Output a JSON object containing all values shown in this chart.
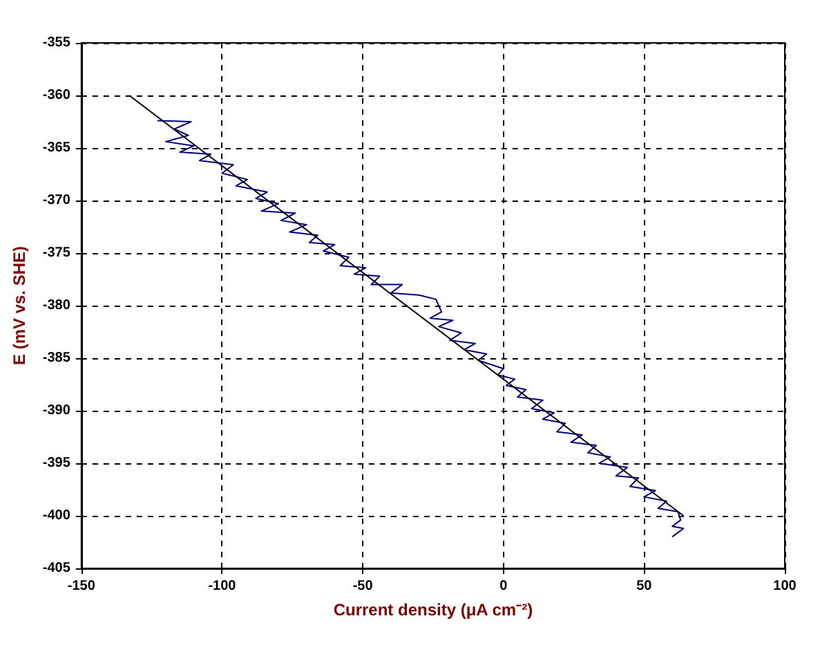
{
  "chart_data": {
    "type": "line",
    "xlabel": "Current density (μA cm⁻²)",
    "ylabel": "E (mV vs. SHE)",
    "xlim": [
      -150,
      100
    ],
    "xticks": [
      -150,
      -100,
      -50,
      0,
      50,
      100
    ],
    "ylim": [
      -405,
      -355
    ],
    "yticks": [
      -405,
      -400,
      -395,
      -390,
      -385,
      -380,
      -375,
      -370,
      -365,
      -360,
      -355
    ],
    "grid": true,
    "marker": "none",
    "line_style": "solid",
    "series": [
      {
        "color": "#000080",
        "x": [
          -123,
          -111,
          -117,
          -112,
          -120,
          -110,
          -115,
          -104,
          -108,
          -96,
          -100,
          -91,
          -95,
          -84,
          -88,
          -80,
          -86,
          -74,
          -79,
          -70,
          -76,
          -66,
          -69,
          -60,
          -64,
          -55,
          -58,
          -49,
          -53,
          -44,
          -47,
          -36,
          -40,
          -30,
          -24,
          -22,
          -26,
          -18,
          -23,
          -15,
          -19,
          -10,
          -14,
          -6,
          -9,
          0,
          -2,
          4,
          1,
          8,
          5,
          14,
          10,
          18,
          14,
          22,
          19,
          28,
          24,
          33,
          30,
          38,
          34,
          44,
          40,
          48,
          45,
          54,
          50,
          58,
          55,
          62,
          63,
          60,
          64,
          60
        ],
        "values": [
          -362.4,
          -362.5,
          -363.2,
          -363.8,
          -364.4,
          -364.8,
          -365.4,
          -365.6,
          -366.2,
          -366.6,
          -367.4,
          -368.0,
          -368.6,
          -369.2,
          -369.8,
          -370.3,
          -371.0,
          -371.2,
          -371.9,
          -372.3,
          -373.0,
          -373.3,
          -374.0,
          -374.2,
          -374.8,
          -375.4,
          -376.2,
          -376.4,
          -377.0,
          -377.2,
          -378.0,
          -378.0,
          -378.8,
          -379.0,
          -379.4,
          -380.6,
          -381.2,
          -381.4,
          -382.0,
          -382.6,
          -383.3,
          -383.6,
          -384.2,
          -384.6,
          -385.2,
          -386.0,
          -386.6,
          -387.0,
          -387.6,
          -388.0,
          -388.7,
          -389.0,
          -389.8,
          -390.2,
          -390.8,
          -391.2,
          -392.0,
          -392.3,
          -393.0,
          -393.3,
          -394.0,
          -394.4,
          -395.0,
          -395.4,
          -396.2,
          -396.4,
          -397.2,
          -397.6,
          -398.2,
          -398.6,
          -399.3,
          -399.6,
          -400.4,
          -401.0,
          -401.2,
          -402.0
        ]
      },
      {
        "color": "#000000",
        "x": [
          -133,
          64
        ],
        "values": [
          -360,
          -400
        ]
      }
    ]
  }
}
